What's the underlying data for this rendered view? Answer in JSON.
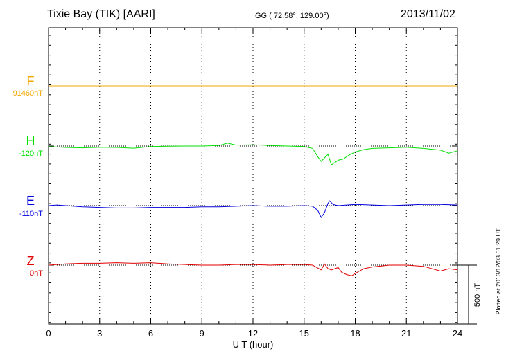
{
  "header": {
    "station": "Tixie Bay (TIK)  [AARI]",
    "coords": "GG ( 72.58°, 129.00°)",
    "date": "2013/11/02"
  },
  "footer": {
    "plotted": "Plotted at 2013/12/03 01:29 UT"
  },
  "chart_data": {
    "type": "line",
    "title": "Tixie Bay (TIK)  [AARI]",
    "xlabel": "U T (hour)",
    "xlim": [
      0,
      24
    ],
    "x_ticks": [
      "0",
      "3",
      "6",
      "9",
      "12",
      "15",
      "18",
      "21",
      "24"
    ],
    "grid": "vertical dotted lines every 3 hours",
    "scale_bar": "500 nT",
    "series": [
      {
        "name": "F",
        "baseline_label": "91460nT",
        "color": "#f0a800",
        "x": [
          0,
          0.5,
          1,
          2,
          3,
          4,
          5,
          6,
          7,
          8,
          9,
          10,
          11,
          12,
          13,
          14,
          15,
          16,
          17,
          18,
          19,
          20,
          21,
          22,
          23,
          24
        ],
        "values": [
          0,
          0,
          0,
          0,
          0,
          0,
          0,
          0,
          0,
          0,
          0,
          0,
          0,
          0,
          0,
          0,
          0,
          0,
          0,
          0,
          0,
          0,
          0,
          0,
          0,
          0
        ]
      },
      {
        "name": "H",
        "baseline_label": "-120nT",
        "color": "#00e000",
        "x": [
          0,
          0.5,
          1,
          2,
          3,
          4,
          5,
          6,
          7,
          8,
          9,
          10,
          10.5,
          11,
          12,
          13,
          14,
          15,
          15.5,
          15.8,
          16,
          16.2,
          16.4,
          16.6,
          16.8,
          17,
          17.3,
          17.6,
          18,
          18.5,
          19,
          20,
          21,
          22,
          23,
          23.5,
          24
        ],
        "values": [
          -5,
          -8,
          -12,
          -15,
          -10,
          -12,
          -18,
          -5,
          -2,
          0,
          0,
          5,
          25,
          8,
          10,
          5,
          0,
          -5,
          -20,
          -90,
          -130,
          -100,
          -70,
          -160,
          -140,
          -120,
          -110,
          -80,
          -50,
          -30,
          -20,
          -15,
          -10,
          -20,
          -35,
          -60,
          -40
        ]
      },
      {
        "name": "E",
        "baseline_label": "-110nT",
        "color": "#0000dd",
        "x": [
          0,
          0.5,
          1,
          2,
          3,
          4,
          5,
          6,
          7,
          8,
          9,
          10,
          11,
          12,
          13,
          14,
          15,
          15.5,
          15.8,
          16,
          16.2,
          16.4,
          16.5,
          16.7,
          17,
          17.5,
          18,
          19,
          20,
          21,
          22,
          23,
          24
        ],
        "values": [
          0,
          5,
          0,
          -10,
          -15,
          -20,
          -20,
          -15,
          -15,
          -15,
          -10,
          -10,
          -5,
          0,
          -5,
          -5,
          0,
          -5,
          -40,
          -100,
          -60,
          20,
          40,
          10,
          0,
          5,
          10,
          5,
          0,
          5,
          10,
          10,
          5
        ]
      },
      {
        "name": "Z",
        "baseline_label": "0nT",
        "color": "#e00000",
        "x": [
          0,
          0.5,
          1,
          2,
          3,
          4,
          5,
          6,
          7,
          8,
          9,
          10,
          11,
          12,
          13,
          14,
          15,
          15.5,
          16,
          16.2,
          16.4,
          16.6,
          17,
          17.2,
          17.5,
          17.8,
          18,
          18.5,
          19,
          20,
          21,
          22,
          23,
          23.5,
          24
        ],
        "values": [
          0,
          5,
          10,
          15,
          15,
          20,
          15,
          20,
          10,
          5,
          0,
          0,
          5,
          5,
          0,
          5,
          5,
          0,
          -40,
          10,
          -30,
          -40,
          -20,
          -60,
          -80,
          -90,
          -70,
          -30,
          -15,
          0,
          0,
          -10,
          -50,
          -30,
          -40
        ]
      }
    ]
  }
}
